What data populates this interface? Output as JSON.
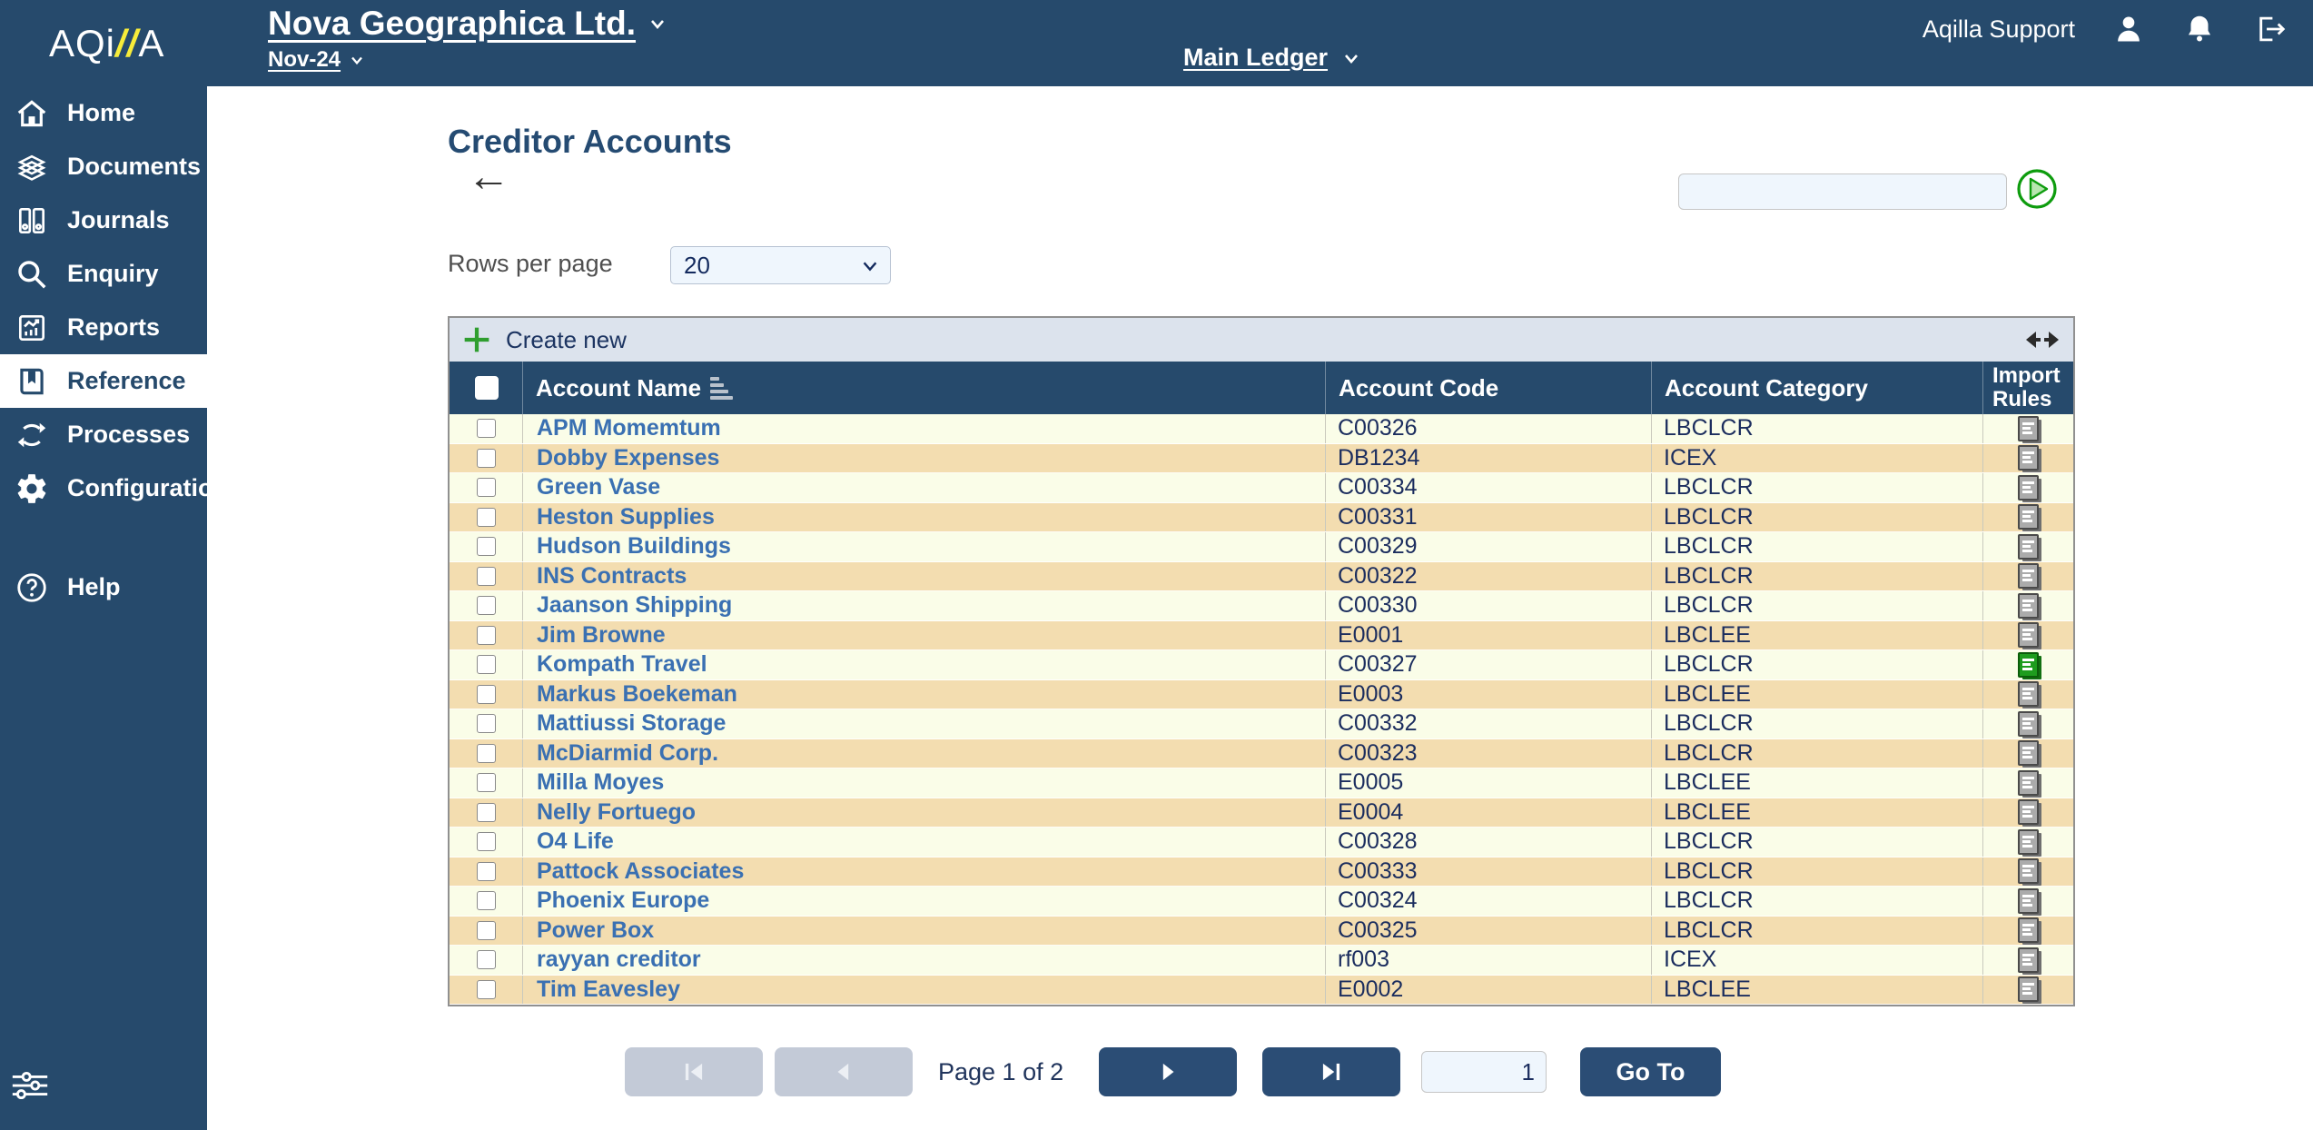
{
  "header": {
    "logo": {
      "prefix": "AQi",
      "slashes": "//",
      "suffix": "A"
    },
    "company_name": "Nova Geographica Ltd.",
    "period": "Nov-24",
    "ledger": "Main Ledger",
    "user_name": "Aqilla Support",
    "icons": [
      "user-icon",
      "bell-icon",
      "logout-icon"
    ]
  },
  "sidebar": {
    "items": [
      {
        "label": "Home",
        "icon": "home-icon",
        "active": false
      },
      {
        "label": "Documents",
        "icon": "documents-icon",
        "active": false
      },
      {
        "label": "Journals",
        "icon": "journals-icon",
        "active": false
      },
      {
        "label": "Enquiry",
        "icon": "enquiry-icon",
        "active": false
      },
      {
        "label": "Reports",
        "icon": "reports-icon",
        "active": false
      },
      {
        "label": "Reference",
        "icon": "reference-icon",
        "active": true
      },
      {
        "label": "Processes",
        "icon": "processes-icon",
        "active": false
      },
      {
        "label": "Configuration",
        "icon": "configuration-icon",
        "active": false
      }
    ],
    "help": {
      "label": "Help",
      "icon": "help-icon"
    },
    "footer_icon": "sliders-icon"
  },
  "page": {
    "title": "Creditor Accounts",
    "rows_per_page_label": "Rows per page",
    "rows_per_page_value": "20",
    "search_value": ""
  },
  "toolbar": {
    "create_new_label": "Create new",
    "icons": [
      "plus-icon",
      "resize-columns-icon"
    ]
  },
  "table": {
    "columns": [
      "Account Name",
      "Account Code",
      "Account Category",
      "Import Rules"
    ],
    "select_all_checked": false,
    "rows": [
      {
        "name": "APM Momemtum",
        "code": "C00326",
        "category": "LBCLCR",
        "import_icon": "gray",
        "checked": false
      },
      {
        "name": "Dobby Expenses",
        "code": "DB1234",
        "category": "ICEX",
        "import_icon": "gray",
        "checked": false
      },
      {
        "name": "Green Vase",
        "code": "C00334",
        "category": "LBCLCR",
        "import_icon": "gray",
        "checked": false
      },
      {
        "name": "Heston Supplies",
        "code": "C00331",
        "category": "LBCLCR",
        "import_icon": "gray",
        "checked": false
      },
      {
        "name": "Hudson Buildings",
        "code": "C00329",
        "category": "LBCLCR",
        "import_icon": "gray",
        "checked": false
      },
      {
        "name": "INS Contracts",
        "code": "C00322",
        "category": "LBCLCR",
        "import_icon": "gray",
        "checked": false
      },
      {
        "name": "Jaanson Shipping",
        "code": "C00330",
        "category": "LBCLCR",
        "import_icon": "gray",
        "checked": false
      },
      {
        "name": "Jim Browne",
        "code": "E0001",
        "category": "LBCLEE",
        "import_icon": "gray",
        "checked": false
      },
      {
        "name": "Kompath Travel",
        "code": "C00327",
        "category": "LBCLCR",
        "import_icon": "green",
        "checked": false
      },
      {
        "name": "Markus Boekeman",
        "code": "E0003",
        "category": "LBCLEE",
        "import_icon": "gray",
        "checked": false
      },
      {
        "name": "Mattiussi Storage",
        "code": "C00332",
        "category": "LBCLCR",
        "import_icon": "gray",
        "checked": false
      },
      {
        "name": "McDiarmid Corp.",
        "code": "C00323",
        "category": "LBCLCR",
        "import_icon": "gray",
        "checked": false
      },
      {
        "name": "Milla Moyes",
        "code": "E0005",
        "category": "LBCLEE",
        "import_icon": "gray",
        "checked": false
      },
      {
        "name": "Nelly Fortuego",
        "code": "E0004",
        "category": "LBCLEE",
        "import_icon": "gray",
        "checked": false
      },
      {
        "name": "O4 Life",
        "code": "C00328",
        "category": "LBCLCR",
        "import_icon": "gray",
        "checked": false
      },
      {
        "name": "Pattock Associates",
        "code": "C00333",
        "category": "LBCLCR",
        "import_icon": "gray",
        "checked": false
      },
      {
        "name": "Phoenix Europe",
        "code": "C00324",
        "category": "LBCLCR",
        "import_icon": "gray",
        "checked": false
      },
      {
        "name": "Power Box",
        "code": "C00325",
        "category": "LBCLCR",
        "import_icon": "gray",
        "checked": false
      },
      {
        "name": "rayyan creditor",
        "code": "rf003",
        "category": "ICEX",
        "import_icon": "gray",
        "checked": false
      },
      {
        "name": "Tim Eavesley",
        "code": "E0002",
        "category": "LBCLEE",
        "import_icon": "gray",
        "checked": false
      }
    ]
  },
  "pagination": {
    "page_status": "Page 1 of 2",
    "page_input_value": "1",
    "goto_label": "Go To",
    "buttons": [
      "first-page",
      "previous-page",
      "next-page",
      "last-page"
    ]
  },
  "colors": {
    "navy": "#264a6c",
    "button_navy": "#2b4d75",
    "link_blue": "#3a70b2",
    "row_cream": "#fafde8",
    "row_tan": "#f3ddb0",
    "accent_green": "#2f9e2f",
    "toolbar_bg": "#dce3ed",
    "input_bg": "#eff6fd",
    "disabled_button": "#c3cad7",
    "logo_yellow": "#f7ec3a"
  }
}
